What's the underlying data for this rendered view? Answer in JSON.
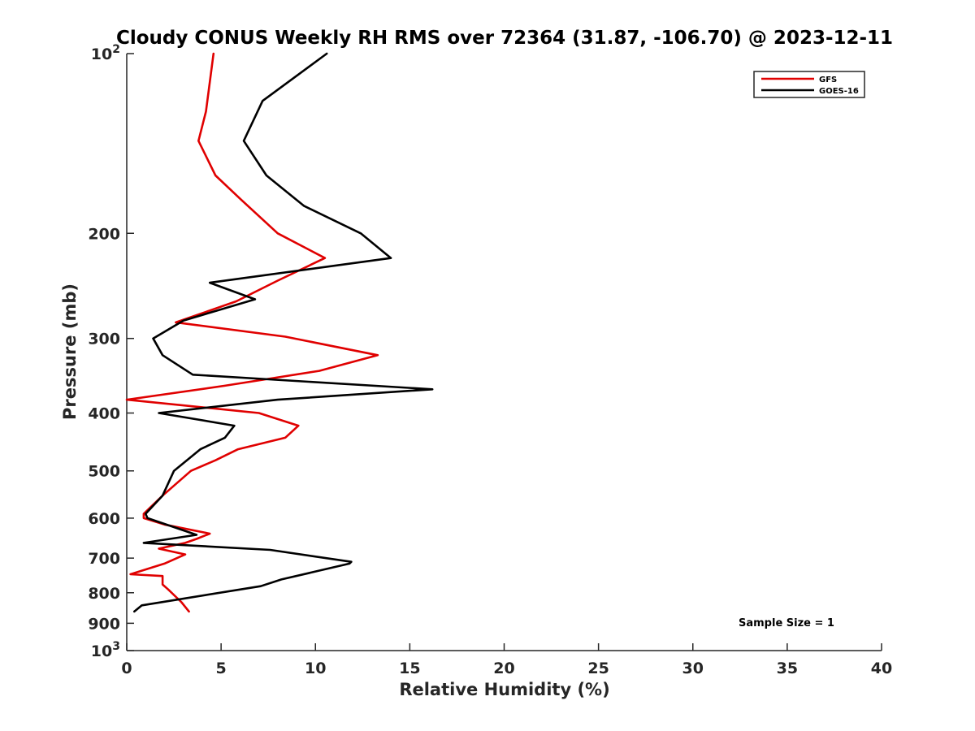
{
  "chart_data": {
    "type": "line",
    "title": "Cloudy CONUS Weekly RH RMS over 72364 (31.87, -106.70) @ 2023-12-11",
    "xlabel": "Relative Humidity (%)",
    "ylabel": "Pressure (mb)",
    "xlim": [
      0,
      40
    ],
    "ylim": [
      100,
      1000
    ],
    "y_scale": "log",
    "y_reversed": true,
    "x_ticks": [
      "0",
      "5",
      "10",
      "15",
      "20",
      "25",
      "30",
      "35",
      "40"
    ],
    "y_ticks": [
      {
        "value": 100,
        "base": "10",
        "exp": "2"
      },
      {
        "value": 200,
        "label": "200"
      },
      {
        "value": 300,
        "label": "300"
      },
      {
        "value": 400,
        "label": "400"
      },
      {
        "value": 500,
        "label": "500"
      },
      {
        "value": 600,
        "label": "600"
      },
      {
        "value": 700,
        "label": "700"
      },
      {
        "value": 800,
        "label": "800"
      },
      {
        "value": 900,
        "label": "900"
      },
      {
        "value": 1000,
        "base": "10",
        "exp": "3"
      }
    ],
    "grid": false,
    "legend_position": "top-right",
    "series": [
      {
        "name": "GFS",
        "color": "#e00000",
        "points": [
          [
            4.6,
            100
          ],
          [
            4.2,
            125
          ],
          [
            3.8,
            140
          ],
          [
            4.7,
            160
          ],
          [
            6.0,
            175
          ],
          [
            8.0,
            200
          ],
          [
            10.5,
            220
          ],
          [
            8.0,
            240
          ],
          [
            5.8,
            260
          ],
          [
            2.6,
            282
          ],
          [
            8.4,
            298
          ],
          [
            13.3,
            320
          ],
          [
            10.2,
            340
          ],
          [
            5.2,
            360
          ],
          [
            0.0,
            380
          ],
          [
            7.0,
            400
          ],
          [
            9.1,
            420
          ],
          [
            8.4,
            440
          ],
          [
            5.9,
            460
          ],
          [
            4.7,
            480
          ],
          [
            3.4,
            500
          ],
          [
            1.9,
            550
          ],
          [
            0.9,
            590
          ],
          [
            0.9,
            600
          ],
          [
            2.0,
            615
          ],
          [
            4.4,
            637
          ],
          [
            3.7,
            650
          ],
          [
            3.1,
            660
          ],
          [
            1.7,
            675
          ],
          [
            3.1,
            690
          ],
          [
            2.0,
            715
          ],
          [
            0.2,
            745
          ],
          [
            1.9,
            750
          ],
          [
            1.9,
            775
          ],
          [
            2.2,
            790
          ],
          [
            2.9,
            830
          ],
          [
            3.3,
            860
          ]
        ]
      },
      {
        "name": "GOES-16",
        "color": "#000000",
        "points": [
          [
            10.6,
            100
          ],
          [
            7.2,
            120
          ],
          [
            6.2,
            140
          ],
          [
            7.4,
            160
          ],
          [
            9.4,
            180
          ],
          [
            12.4,
            200
          ],
          [
            14.0,
            220
          ],
          [
            4.4,
            242
          ],
          [
            6.8,
            258
          ],
          [
            3.0,
            280
          ],
          [
            1.4,
            300
          ],
          [
            1.9,
            320
          ],
          [
            3.5,
            345
          ],
          [
            16.2,
            365
          ],
          [
            8.0,
            380
          ],
          [
            1.7,
            400
          ],
          [
            5.7,
            420
          ],
          [
            5.2,
            440
          ],
          [
            3.9,
            460
          ],
          [
            2.5,
            500
          ],
          [
            1.9,
            550
          ],
          [
            1.0,
            590
          ],
          [
            1.1,
            600
          ],
          [
            3.7,
            640
          ],
          [
            0.9,
            660
          ],
          [
            7.6,
            678
          ],
          [
            11.9,
            710
          ],
          [
            11.8,
            715
          ],
          [
            8.2,
            760
          ],
          [
            7.1,
            780
          ],
          [
            0.8,
            840
          ],
          [
            0.4,
            860
          ]
        ]
      }
    ],
    "annotation": "Sample Size = 1"
  }
}
